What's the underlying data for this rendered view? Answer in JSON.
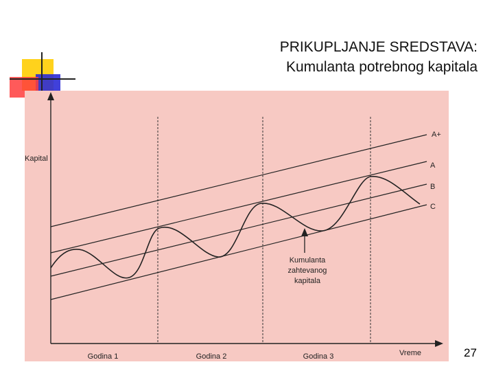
{
  "slide": {
    "title_line1": "PRIKUPLJANJE SREDSTAVA:",
    "title_line2": "Kumulanta potrebnog kapitala",
    "page_number": "27"
  },
  "diagram": {
    "y_axis_label": "Kapital",
    "x_axis_label": "Vreme",
    "periods": [
      "Godina 1",
      "Godina 2",
      "Godina 3"
    ],
    "lines": [
      "A+",
      "A",
      "B",
      "C"
    ],
    "annotation": [
      "Kumulanta",
      "zahtevanog",
      "kapitala"
    ]
  },
  "colors": {
    "panel_background": "#f7c9c3",
    "line_color": "#222222",
    "deco_yellow": "#ffd21c",
    "deco_red": "#ff3d3d",
    "deco_blue": "#2b2bd6"
  }
}
